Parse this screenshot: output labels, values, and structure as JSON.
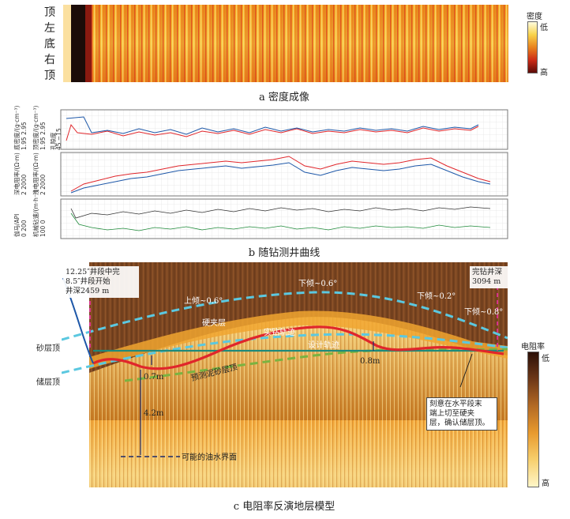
{
  "panel_a": {
    "side_labels": [
      "顶",
      "左",
      "底",
      "右",
      "顶"
    ],
    "legend": {
      "title": "密度",
      "low": "低",
      "high": "高"
    },
    "caption": "a  密度成像"
  },
  "panel_b": {
    "track1": {
      "lbl1": "底密度/(g·cm⁻³)",
      "r1": "1.95  2.95",
      "lbl2": "顶密度/(g·cm⁻³)",
      "r2": "1.95  2.95",
      "lbl3": "孔隙度",
      "r3": "45  −15"
    },
    "track2": {
      "lbl1": "深电阻率/(Ω·m)",
      "r1": "2  2000",
      "lbl2": "浅电阻率/(Ω·m)",
      "r2": "2  2000"
    },
    "track3": {
      "lbl1": "伽马/API",
      "r1": "0  200",
      "lbl2": "机械钻速/(m·h⁻¹)",
      "r2": "100  0"
    },
    "caption": "b  随钻测井曲线"
  },
  "panel_c": {
    "top_left_note": [
      "12.25″井段中完",
      "8.5″井段开始",
      "井深2459 m"
    ],
    "top_right_note": [
      "完钻井深",
      "3094 m"
    ],
    "dip_labels": [
      "上倾~0.6°",
      "下倾~0.6°",
      "下倾~0.2°",
      "下倾~0.8°"
    ],
    "layer_labels": {
      "hard": "硬夹层",
      "actual": "实钻轨迹",
      "design": "设计轨迹",
      "predicted": "预测泥砂层顶"
    },
    "left_labels": {
      "sand_top": "砂层顶",
      "reservoir_top": "储层顶"
    },
    "measures": [
      "0.7m",
      "4.2m",
      "0.8m"
    ],
    "owc": "可能的油水界面",
    "callout": [
      "刻意在水平段末",
      "端上切至硬夹",
      "层，确认储层顶。"
    ],
    "legend": {
      "title": "电阻率",
      "low": "低",
      "high": "高"
    },
    "caption": "c  电阻率反演地层模型"
  },
  "colors": {
    "deep": "#e0262b",
    "shallow": "#1d57a8",
    "gamma": "#333333",
    "rop": "#1f8a3a",
    "dashed_cyan": "#5bc8e0",
    "dashed_green": "#7ab341"
  }
}
